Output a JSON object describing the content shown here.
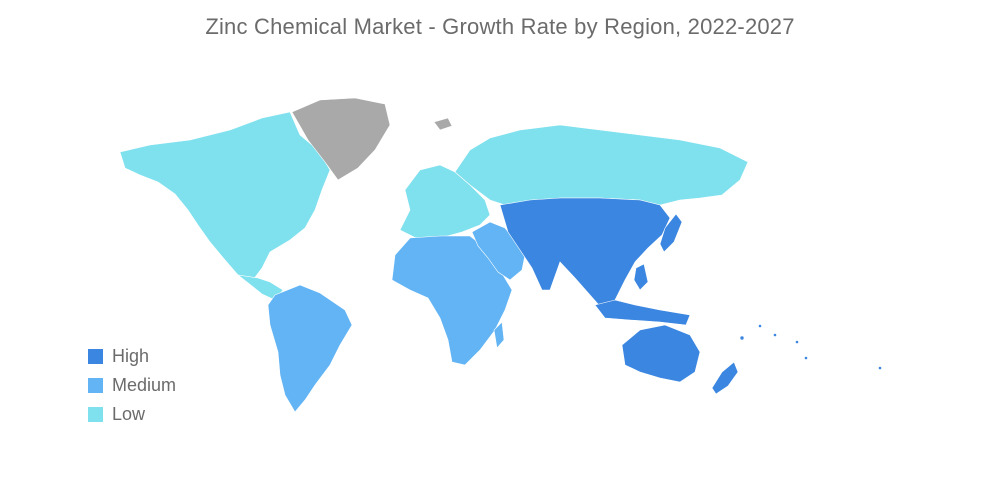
{
  "title": "Zinc Chemical Market - Growth Rate by Region, 2022-2027",
  "legend": [
    {
      "label": "High",
      "color": "#3b86e0"
    },
    {
      "label": "Medium",
      "color": "#62b4f4"
    },
    {
      "label": "Low",
      "color": "#7fe0ee"
    }
  ],
  "colors": {
    "no_data": "#a9a9a9"
  },
  "regions": [
    {
      "region": "North America",
      "level": "Low"
    },
    {
      "region": "Europe",
      "level": "Low"
    },
    {
      "region": "Russia",
      "level": "Low"
    },
    {
      "region": "South America",
      "level": "Medium"
    },
    {
      "region": "Africa",
      "level": "Medium"
    },
    {
      "region": "Middle East",
      "level": "Medium"
    },
    {
      "region": "Asia-Pacific",
      "level": "High"
    },
    {
      "region": "Greenland",
      "level": "No data"
    }
  ]
}
